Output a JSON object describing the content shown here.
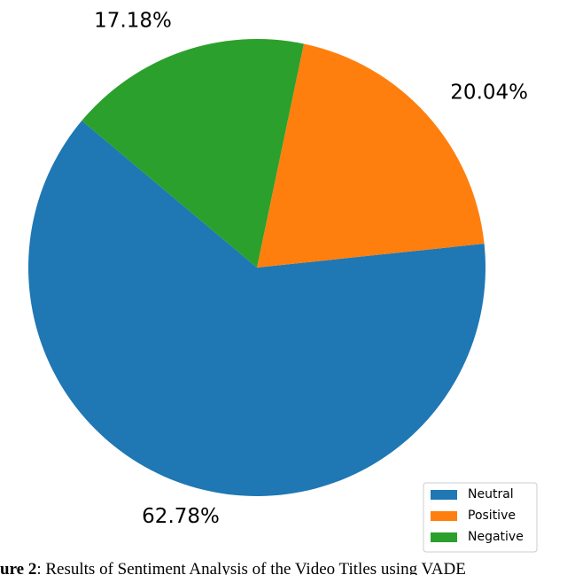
{
  "chart_data": {
    "type": "pie",
    "categories": [
      "Neutral",
      "Positive",
      "Negative"
    ],
    "values": [
      62.78,
      20.04,
      17.18
    ],
    "value_labels": [
      "62.78%",
      "20.04%",
      "17.18%"
    ],
    "colors": [
      "#1f77b4",
      "#ff7f0e",
      "#2ca02c"
    ],
    "startangle": 140,
    "counterclock": true,
    "legend": "lower right"
  },
  "caption": {
    "label": "ure 2",
    "text": ": Results of Sentiment Analysis of the Video Titles using VADE"
  }
}
